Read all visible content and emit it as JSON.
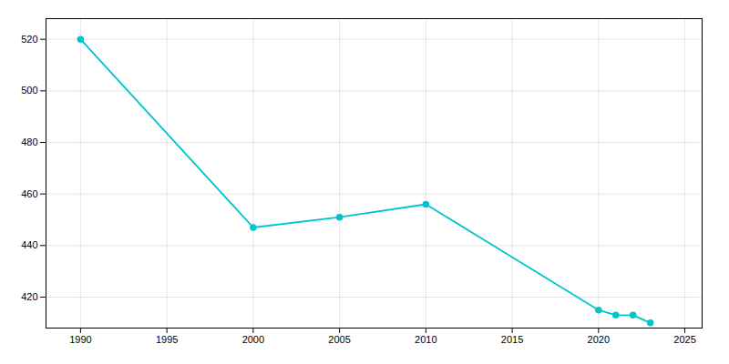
{
  "chart_data": {
    "type": "line",
    "x": [
      1990,
      2000,
      2005,
      2010,
      2020,
      2021,
      2022,
      2023
    ],
    "values": [
      520,
      447,
      451,
      456,
      415,
      413,
      413,
      410
    ],
    "color": "#00C5CD",
    "marker": "circle",
    "xlim": [
      1988,
      2026
    ],
    "ylim": [
      408,
      528
    ],
    "xticks": [
      1990,
      1995,
      2000,
      2005,
      2010,
      2015,
      2020,
      2025
    ],
    "yticks": [
      420,
      440,
      460,
      480,
      500,
      520
    ],
    "grid": true
  }
}
